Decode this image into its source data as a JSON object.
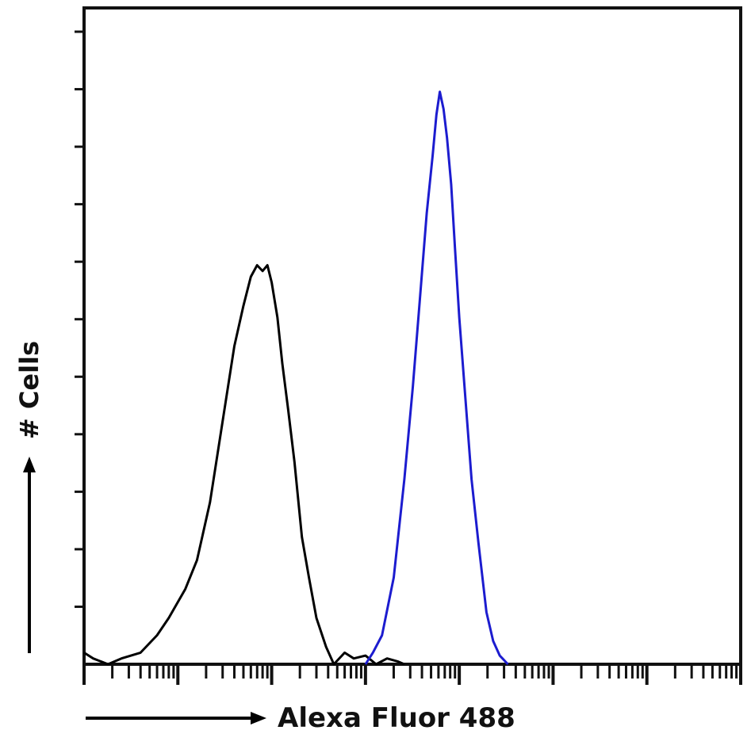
{
  "chart_data": {
    "type": "line",
    "xlabel": "Alexa Fluor 488",
    "ylabel": "# Cells",
    "x_scale": "log",
    "xlim": [
      1,
      10000000
    ],
    "ylim": [
      0,
      1
    ],
    "grid": false,
    "legend": "none",
    "y_tick_values": [
      0.1,
      0.2,
      0.3,
      0.4,
      0.5,
      0.6,
      0.7,
      0.8,
      0.9,
      1.0,
      1.1
    ],
    "series": [
      {
        "color": "#000000",
        "x": [
          1,
          1.25,
          1.8,
          2.5,
          4,
          6,
          8,
          12,
          16,
          22,
          30,
          40,
          50,
          60,
          70,
          80,
          90,
          100,
          115,
          130,
          150,
          175,
          210,
          250,
          300,
          380,
          460,
          600,
          750,
          1000,
          1300,
          1700,
          2200,
          2600
        ],
        "y": [
          0.02,
          0.01,
          0.0,
          0.01,
          0.02,
          0.05,
          0.08,
          0.13,
          0.18,
          0.28,
          0.42,
          0.55,
          0.62,
          0.67,
          0.69,
          0.68,
          0.69,
          0.66,
          0.6,
          0.52,
          0.44,
          0.35,
          0.22,
          0.15,
          0.08,
          0.03,
          0.0,
          0.02,
          0.01,
          0.015,
          0.0,
          0.01,
          0.005,
          0.0
        ]
      },
      {
        "color": "#1c1ccf",
        "x": [
          1000,
          1200,
          1500,
          2000,
          2600,
          3200,
          3800,
          4500,
          5200,
          5700,
          6200,
          6800,
          7400,
          8200,
          9000,
          10000,
          11500,
          13500,
          16000,
          19500,
          23000,
          27000,
          33000
        ],
        "y": [
          0.0,
          0.02,
          0.05,
          0.15,
          0.32,
          0.48,
          0.63,
          0.78,
          0.88,
          0.95,
          0.99,
          0.96,
          0.91,
          0.83,
          0.72,
          0.6,
          0.47,
          0.32,
          0.21,
          0.09,
          0.04,
          0.015,
          0.0
        ]
      }
    ]
  }
}
